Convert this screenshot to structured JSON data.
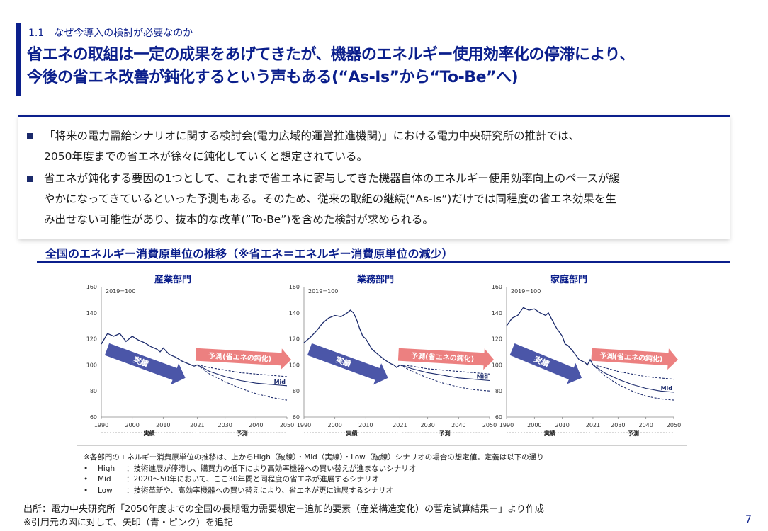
{
  "header": {
    "section": "1.1　なぜ今導入の検討が必要なのか",
    "title_line1": "省エネの取組は一定の成果をあげてきたが、機器のエネルギー使用効率化の停滞により、",
    "title_line2": "今後の省エネ改善が鈍化するという声もある(“As-Is”から“To-Be”へ)"
  },
  "summary": {
    "bullet1_line1": "「将来の電力需給シナリオに関する検討会(電力広域的運営推進機関)」における電力中央研究所の推計では、",
    "bullet1_line2": "2050年度までの省エネが徐々に鈍化していくと想定されている。",
    "bullet2_line1": "省エネが鈍化する要因の1つとして、これまで省エネに寄与してきた機器自体のエネルギー使用効率向上のペースが緩",
    "bullet2_line2": "やかになってきているといった予測もある。そのため、従来の取組の継続(“As-Is”)だけでは同程度の省エネ効果を生",
    "bullet2_line3": "み出せない可能性があり、抜本的な改革(”To-Be”)を含めた検討が求められる。"
  },
  "chart_heading": "全国のエネルギー消費原単位の推移（※省エネ＝エネルギー消費原単位の減少）",
  "chart_data": [
    {
      "type": "line",
      "title": "産業部門",
      "annotation": "2019=100",
      "x_ticks": [
        "1990",
        "2000",
        "2010",
        "2021",
        "2030",
        "2040",
        "2050"
      ],
      "y_ticks": [
        "60",
        "80",
        "100",
        "120",
        "140",
        "160"
      ],
      "ylim": [
        60,
        160
      ],
      "xlim": [
        1990,
        2050
      ],
      "period_labels": [
        "実績",
        "予測"
      ],
      "arrow_actual": "実績",
      "arrow_forecast": "予測(省エネの鈍化)",
      "mid_label": "Mid",
      "series": [
        {
          "role": "actual",
          "x": [
            1990,
            1992,
            1994,
            1996,
            1998,
            2000,
            2002,
            2004,
            2006,
            2008,
            2009,
            2010,
            2012,
            2014,
            2016,
            2018,
            2019,
            2020,
            2021
          ],
          "values": [
            116,
            124,
            122,
            124,
            118,
            122,
            119,
            117,
            114,
            112,
            110,
            113,
            108,
            106,
            103,
            101,
            100,
            99,
            100
          ]
        },
        {
          "role": "high",
          "x": [
            2021,
            2025,
            2030,
            2035,
            2040,
            2045,
            2050
          ],
          "values": [
            100,
            98,
            96,
            94,
            93,
            92,
            91
          ]
        },
        {
          "role": "mid",
          "x": [
            2021,
            2025,
            2030,
            2035,
            2040,
            2045,
            2050
          ],
          "values": [
            100,
            95,
            91,
            88,
            86,
            85,
            84
          ]
        },
        {
          "role": "low",
          "x": [
            2021,
            2025,
            2030,
            2035,
            2040,
            2045,
            2050
          ],
          "values": [
            100,
            93,
            87,
            82,
            78,
            75,
            73
          ]
        }
      ]
    },
    {
      "type": "line",
      "title": "業務部門",
      "annotation": "2019=100",
      "x_ticks": [
        "1990",
        "2000",
        "2010",
        "2021",
        "2030",
        "2040",
        "2050"
      ],
      "y_ticks": [
        "60",
        "80",
        "100",
        "120",
        "140",
        "160"
      ],
      "ylim": [
        60,
        160
      ],
      "xlim": [
        1990,
        2050
      ],
      "period_labels": [
        "実績",
        "予測"
      ],
      "arrow_actual": "実績",
      "arrow_forecast": "予測(省エネの鈍化)",
      "mid_label": "Mid",
      "series": [
        {
          "role": "actual",
          "x": [
            1990,
            1992,
            1994,
            1996,
            1998,
            2000,
            2002,
            2004,
            2005,
            2006,
            2007,
            2008,
            2009,
            2010,
            2012,
            2014,
            2016,
            2018,
            2019,
            2020,
            2021
          ],
          "values": [
            117,
            121,
            126,
            132,
            136,
            138,
            137,
            140,
            142,
            140,
            135,
            128,
            122,
            120,
            112,
            108,
            104,
            101,
            100,
            98,
            100
          ]
        },
        {
          "role": "high",
          "x": [
            2021,
            2025,
            2030,
            2035,
            2040,
            2045,
            2050
          ],
          "values": [
            100,
            99,
            97,
            96,
            95,
            94,
            93
          ]
        },
        {
          "role": "mid",
          "x": [
            2021,
            2025,
            2030,
            2035,
            2040,
            2045,
            2050
          ],
          "values": [
            100,
            97,
            94,
            92,
            90,
            89,
            88
          ]
        },
        {
          "role": "low",
          "x": [
            2021,
            2025,
            2030,
            2035,
            2040,
            2045,
            2050
          ],
          "values": [
            100,
            95,
            90,
            86,
            83,
            81,
            80
          ]
        }
      ]
    },
    {
      "type": "line",
      "title": "家庭部門",
      "annotation": "2019=100",
      "x_ticks": [
        "1990",
        "2000",
        "2010",
        "2021",
        "2030",
        "2040",
        "2050"
      ],
      "y_ticks": [
        "60",
        "80",
        "100",
        "120",
        "140",
        "160"
      ],
      "ylim": [
        60,
        160
      ],
      "xlim": [
        1990,
        2050
      ],
      "period_labels": [
        "実績",
        "予測"
      ],
      "arrow_actual": "実績",
      "arrow_forecast": "予測(省エネの鈍化)",
      "mid_label": "Mid",
      "series": [
        {
          "role": "actual",
          "x": [
            1990,
            1992,
            1994,
            1996,
            1998,
            2000,
            2002,
            2004,
            2005,
            2006,
            2008,
            2010,
            2011,
            2012,
            2014,
            2016,
            2018,
            2019,
            2020,
            2021
          ],
          "values": [
            130,
            136,
            138,
            144,
            142,
            143,
            140,
            138,
            140,
            136,
            128,
            122,
            116,
            115,
            110,
            104,
            102,
            100,
            104,
            100
          ]
        },
        {
          "role": "high",
          "x": [
            2021,
            2025,
            2030,
            2035,
            2040,
            2045,
            2050
          ],
          "values": [
            100,
            98,
            95,
            93,
            91,
            90,
            89
          ]
        },
        {
          "role": "mid",
          "x": [
            2021,
            2025,
            2030,
            2035,
            2040,
            2045,
            2050
          ],
          "values": [
            100,
            94,
            89,
            85,
            82,
            80,
            79
          ]
        },
        {
          "role": "low",
          "x": [
            2021,
            2025,
            2030,
            2035,
            2040,
            2045,
            2050
          ],
          "values": [
            100,
            92,
            85,
            80,
            76,
            74,
            73
          ]
        }
      ]
    }
  ],
  "notes": {
    "intro": "※各部門のエネルギー消費原単位の推移は、上からHigh（破線）・Mid（実線）・Low（破線）シナリオの場合の想定値。定義は以下の通り",
    "items": [
      {
        "bullet": "•",
        "name": "High",
        "desc": "：技術進展が停滞し、購買力の低下により高効率機器への買い替えが進まないシナリオ"
      },
      {
        "bullet": "•",
        "name": "Mid",
        "desc": "：2020～50年において、ここ30年間と同程度の省エネが進展するシナリオ"
      },
      {
        "bullet": "•",
        "name": "Low",
        "desc": "：技術革新や、高効率機器への買い替えにより、省エネが更に進展するシナリオ"
      }
    ]
  },
  "source": {
    "line1": "出所：電力中央研究所「2050年度までの全国の長期電力需要想定－追加的要素（産業構造変化）の暫定試算結果－」より作成",
    "line2": "※引用元の図に対して、矢印（青・ピンク）を追記"
  },
  "page_number": "7",
  "colors": {
    "brand": "#0b1f8c",
    "line": "#1b2a6b",
    "arrow_actual": "#4b56a8",
    "arrow_forecast": "#ec8080"
  }
}
